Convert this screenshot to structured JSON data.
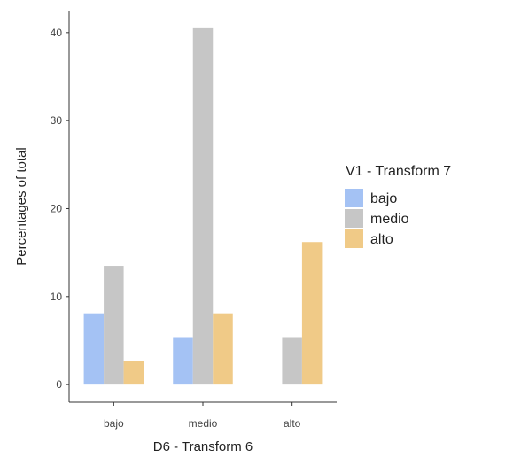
{
  "chart_data": {
    "type": "bar",
    "categories": [
      "bajo",
      "medio",
      "alto"
    ],
    "series": [
      {
        "name": "bajo",
        "values": [
          8.1,
          5.4,
          0
        ],
        "color": "#a4c2f4"
      },
      {
        "name": "medio",
        "values": [
          13.5,
          40.5,
          5.4
        ],
        "color": "#c6c6c6"
      },
      {
        "name": "alto",
        "values": [
          2.7,
          8.1,
          16.2
        ],
        "color": "#f0ca87"
      }
    ],
    "xlabel": "D6 - Transform 6",
    "ylabel": "Percentages of total",
    "ylim": [
      -2,
      42.5
    ],
    "yticks": [
      0,
      10,
      20,
      30,
      40
    ],
    "legend_title": "V1 - Transform 7",
    "legend_position": "right",
    "grid": false
  }
}
